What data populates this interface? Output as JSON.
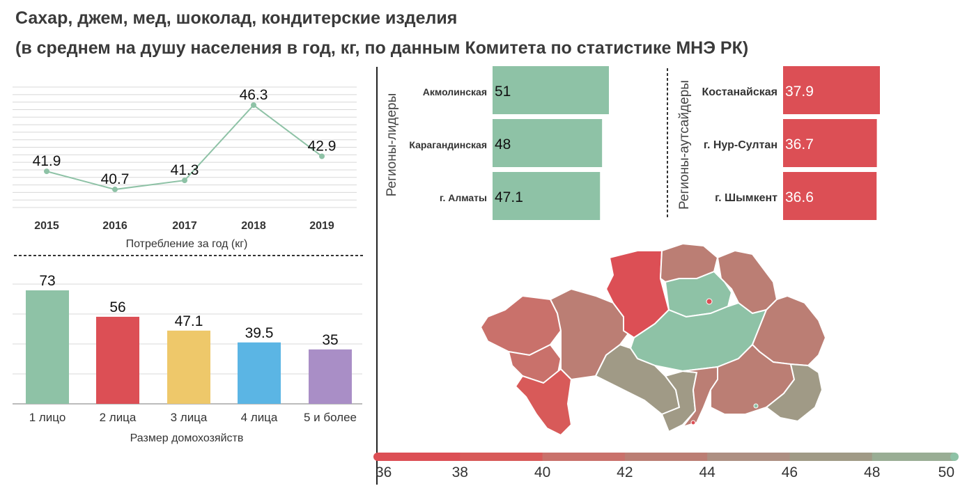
{
  "title": "Сахар, джем, мед, шоколад, кондитерские изделия",
  "subtitle": "(в среднем на душу населения в год, кг, по данным Комитета по статистике МНЭ РК)",
  "chart_data": [
    {
      "type": "line",
      "x": [
        "2015",
        "2016",
        "2017",
        "2018",
        "2019"
      ],
      "values": [
        41.9,
        40.7,
        41.3,
        46.3,
        42.9
      ],
      "xlabel": "Потребление за год (кг)",
      "ylim": [
        39.5,
        47.5
      ],
      "grid": true,
      "color": "#8ec2a6"
    },
    {
      "type": "bar",
      "categories": [
        "1 лицо",
        "2 лица",
        "3 лица",
        "4 лица",
        "5 и более"
      ],
      "values": [
        73,
        56,
        47.1,
        39.5,
        35
      ],
      "colors": [
        "#8ec2a6",
        "#dc4f55",
        "#eec86a",
        "#5bb5e4",
        "#a98ec6"
      ],
      "xlabel": "Размер домохозяйств",
      "ylim": [
        0,
        75
      ],
      "grid": true
    },
    {
      "type": "bar",
      "orientation": "horizontal",
      "group_label": "Регионы-лидеры",
      "categories": [
        "Акмолинская",
        "Карагандинская",
        "г. Алматы"
      ],
      "values": [
        51,
        48,
        47.1
      ],
      "color": "#8ec2a6"
    },
    {
      "type": "bar",
      "orientation": "horizontal",
      "group_label": "Регионы-аутсайдеры",
      "categories": [
        "Костанайская",
        "г. Нур-Султан",
        "г. Шымкент"
      ],
      "values": [
        37.9,
        36.7,
        36.6
      ],
      "color": "#dc4f55"
    },
    {
      "type": "choropleth",
      "color_scale": {
        "ticks": [
          36,
          38,
          40,
          42,
          44,
          46,
          48,
          50
        ],
        "colors": [
          "#dc4f55",
          "#d85a59",
          "#c9716b",
          "#bb7e74",
          "#ad8f82",
          "#a09a86",
          "#99ad94",
          "#8ec2a6"
        ]
      }
    }
  ]
}
